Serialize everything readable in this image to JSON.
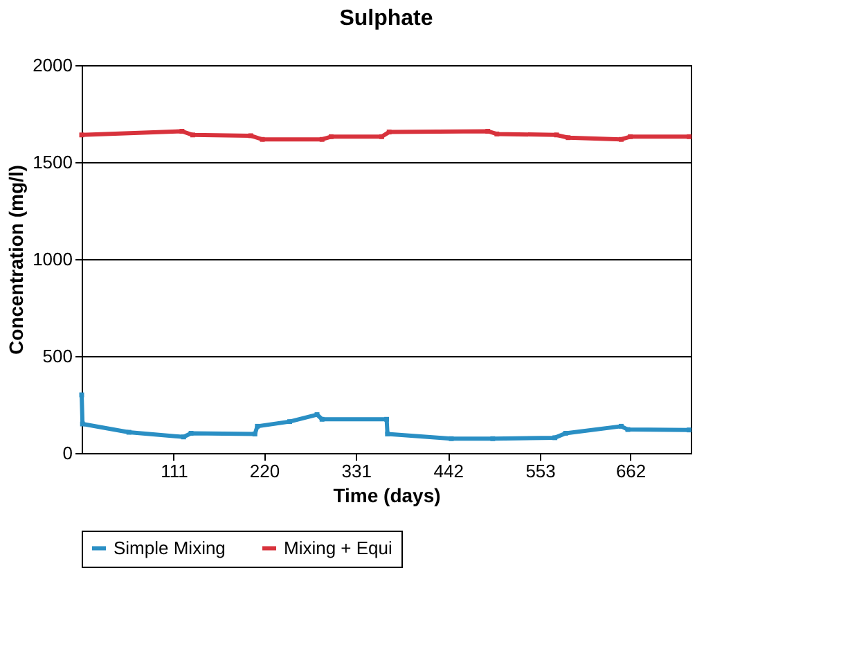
{
  "chart_data": {
    "type": "line",
    "title": "Sulphate",
    "xlabel": "Time (days)",
    "ylabel": "Concentration (mg/l)",
    "xlim": [
      0,
      735
    ],
    "xticks": [
      111,
      220,
      331,
      442,
      553,
      662
    ],
    "ylim": [
      0,
      2000
    ],
    "yticks": [
      0,
      500,
      1000,
      1500,
      2000
    ],
    "grid": "y",
    "legend": "bottom",
    "marker": "square",
    "line_style": "solid",
    "series": [
      {
        "name": "Simple Mixing",
        "color": "#2a8fc4",
        "x": [
          0,
          1,
          57,
          123,
          132,
          209,
          212,
          251,
          284,
          290,
          368,
          369,
          446,
          496,
          571,
          584,
          651,
          659,
          733
        ],
        "values": [
          300,
          150,
          107,
          83,
          102,
          98,
          138,
          162,
          198,
          174,
          174,
          98,
          74,
          74,
          79,
          102,
          138,
          121,
          119
        ]
      },
      {
        "name": "Mixing + Equi",
        "color": "#d8323c",
        "x": [
          0,
          121,
          134,
          204,
          218,
          290,
          301,
          362,
          371,
          490,
          501,
          573,
          587,
          651,
          662,
          733
        ],
        "values": [
          1640,
          1659,
          1640,
          1636,
          1617,
          1617,
          1631,
          1631,
          1655,
          1659,
          1645,
          1640,
          1626,
          1617,
          1631,
          1631
        ]
      }
    ]
  }
}
